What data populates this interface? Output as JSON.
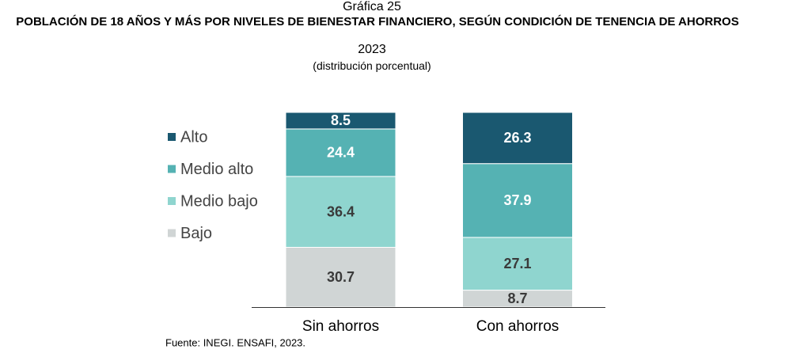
{
  "chart_data": {
    "type": "stacked_bar",
    "label": "Gráfica 25",
    "title": "POBLACIÓN DE 18 AÑOS Y MÁS POR NIVELES DE BIENESTAR FINANCIERO, SEGÚN CONDICIÓN DE TENENCIA DE AHORROS",
    "year": "2023",
    "subtitle": "(distribución porcentual)",
    "source": "Fuente: INEGI. ENSAFI, 2023.",
    "categories": [
      "Sin ahorros",
      "Con ahorros"
    ],
    "ylim": [
      0,
      100
    ],
    "legend": "left",
    "series": [
      {
        "name": "Bajo",
        "color": "#d0d5d5",
        "label_color": "#3a3a3a",
        "values": [
          30.7,
          8.7
        ]
      },
      {
        "name": "Medio bajo",
        "color": "#8fd5cf",
        "label_color": "#3a3a3a",
        "values": [
          36.4,
          27.1
        ]
      },
      {
        "name": "Medio alto",
        "color": "#55b2b3",
        "label_color": "#ffffff",
        "values": [
          24.4,
          37.9
        ]
      },
      {
        "name": "Alto",
        "color": "#1a5870",
        "label_color": "#ffffff",
        "values": [
          8.5,
          26.3
        ]
      }
    ]
  }
}
